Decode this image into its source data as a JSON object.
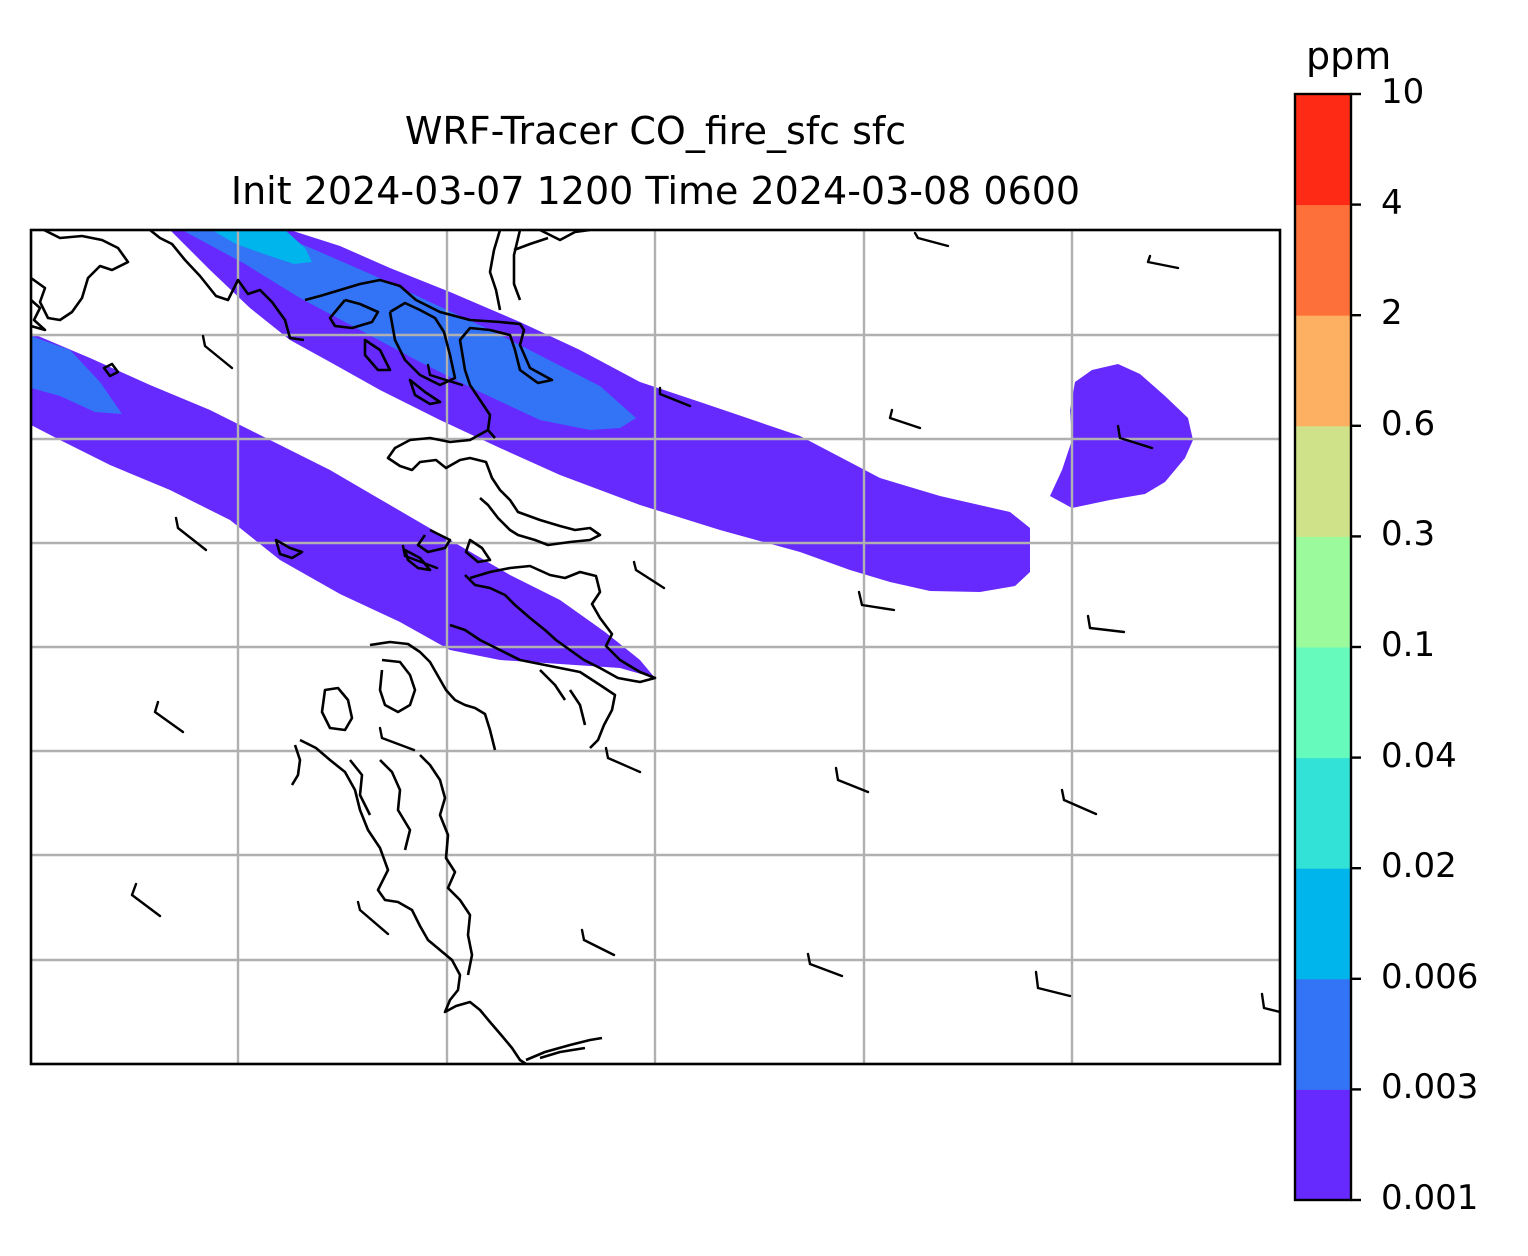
{
  "title": {
    "line1": "WRF-Tracer CO_fire_sfc sfc",
    "line2": "Init 2024-03-07 1200 Time 2024-03-08 0600"
  },
  "colorbar": {
    "unit": "ppm",
    "levels": [
      "0.001",
      "0.003",
      "0.006",
      "0.02",
      "0.04",
      "0.1",
      "0.3",
      "0.6",
      "2",
      "4",
      "10"
    ],
    "colors": [
      "#6629fe",
      "#3374f6",
      "#00b4ec",
      "#33e2d6",
      "#66fbbd",
      "#9bfb9c",
      "#cfe28a",
      "#fdb062",
      "#fe7039",
      "#ff2a15"
    ]
  },
  "map": {
    "gridlines": "on",
    "coastline_color": "#000000",
    "grid_color": "#b0b0b0"
  }
}
